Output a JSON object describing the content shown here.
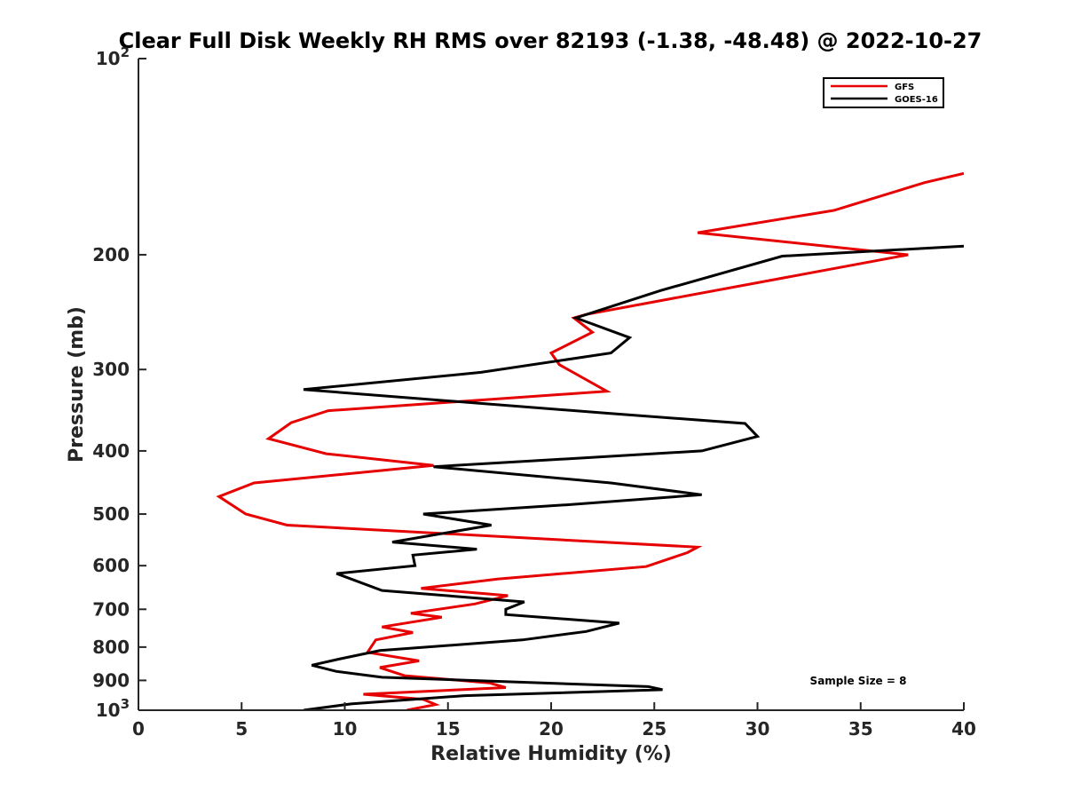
{
  "chart_data": {
    "type": "line",
    "title": "Clear Full Disk Weekly RH RMS over 82193 (-1.38, -48.48) @ 2022-10-27",
    "xlabel": "Relative Humidity (%)",
    "ylabel": "Pressure (mb)",
    "xlim": [
      0,
      40
    ],
    "ylim": [
      100,
      1000
    ],
    "yscale": "log",
    "y_reversed": true,
    "grid": false,
    "legend_position": "top-right",
    "x_ticks": [
      "0",
      "5",
      "10",
      "15",
      "20",
      "25",
      "30",
      "35",
      "40"
    ],
    "y_ticks": [
      {
        "value": 100,
        "base": "10",
        "exp": "2"
      },
      {
        "value": 200,
        "label": "200"
      },
      {
        "value": 300,
        "label": "300"
      },
      {
        "value": 400,
        "label": "400"
      },
      {
        "value": 500,
        "label": "500"
      },
      {
        "value": 600,
        "label": "600"
      },
      {
        "value": 700,
        "label": "700"
      },
      {
        "value": 800,
        "label": "800"
      },
      {
        "value": 900,
        "label": "900"
      },
      {
        "value": 1000,
        "base": "10",
        "exp": "3"
      }
    ],
    "annotation": "Sample Size = 8",
    "series": [
      {
        "name": "GFS",
        "color": "#e60000",
        "points": [
          [
            40.0,
            150
          ],
          [
            38.1,
            155
          ],
          [
            33.7,
            171
          ],
          [
            27.1,
            185
          ],
          [
            37.3,
            200
          ],
          [
            21.7,
            247
          ],
          [
            21.1,
            250
          ],
          [
            22.0,
            263
          ],
          [
            20.0,
            283
          ],
          [
            20.4,
            295
          ],
          [
            22.7,
            324
          ],
          [
            9.2,
            347
          ],
          [
            7.4,
            362
          ],
          [
            6.3,
            383
          ],
          [
            9.1,
            404
          ],
          [
            14.3,
            421
          ],
          [
            5.6,
            448
          ],
          [
            3.9,
            470
          ],
          [
            5.2,
            500
          ],
          [
            7.2,
            520
          ],
          [
            27.1,
            562
          ],
          [
            26.6,
            573
          ],
          [
            24.6,
            602
          ],
          [
            17.4,
            629
          ],
          [
            13.7,
            650
          ],
          [
            17.9,
            667
          ],
          [
            16.3,
            687
          ],
          [
            13.2,
            710
          ],
          [
            14.7,
            720
          ],
          [
            11.8,
            745
          ],
          [
            13.3,
            760
          ],
          [
            11.5,
            780
          ],
          [
            11.1,
            815
          ],
          [
            13.6,
            840
          ],
          [
            11.7,
            860
          ],
          [
            12.9,
            885
          ],
          [
            17.0,
            908
          ],
          [
            17.8,
            923
          ],
          [
            10.9,
            945
          ],
          [
            13.8,
            962
          ],
          [
            14.4,
            980
          ],
          [
            13.0,
            1000
          ]
        ]
      },
      {
        "name": "GOES-16",
        "color": "#000000",
        "points": [
          [
            40.0,
            194
          ],
          [
            31.2,
            201
          ],
          [
            25.3,
            227
          ],
          [
            21.2,
            250
          ],
          [
            23.8,
            268
          ],
          [
            22.9,
            283
          ],
          [
            16.6,
            303
          ],
          [
            8.0,
            322
          ],
          [
            22.6,
            350
          ],
          [
            29.4,
            363
          ],
          [
            30.0,
            380
          ],
          [
            27.3,
            400
          ],
          [
            14.3,
            423
          ],
          [
            22.9,
            448
          ],
          [
            27.3,
            467
          ],
          [
            20.7,
            484
          ],
          [
            13.8,
            500
          ],
          [
            17.1,
            520
          ],
          [
            12.3,
            552
          ],
          [
            16.4,
            566
          ],
          [
            13.3,
            578
          ],
          [
            13.4,
            600
          ],
          [
            9.6,
            617
          ],
          [
            11.8,
            655
          ],
          [
            18.7,
            682
          ],
          [
            17.8,
            700
          ],
          [
            17.8,
            713
          ],
          [
            23.3,
            735
          ],
          [
            21.7,
            757
          ],
          [
            18.6,
            780
          ],
          [
            11.7,
            810
          ],
          [
            9.7,
            835
          ],
          [
            8.4,
            853
          ],
          [
            9.6,
            872
          ],
          [
            11.8,
            890
          ],
          [
            24.7,
            920
          ],
          [
            25.4,
            930
          ],
          [
            15.8,
            950
          ],
          [
            10.3,
            978
          ],
          [
            8.0,
            1000
          ]
        ]
      }
    ]
  }
}
